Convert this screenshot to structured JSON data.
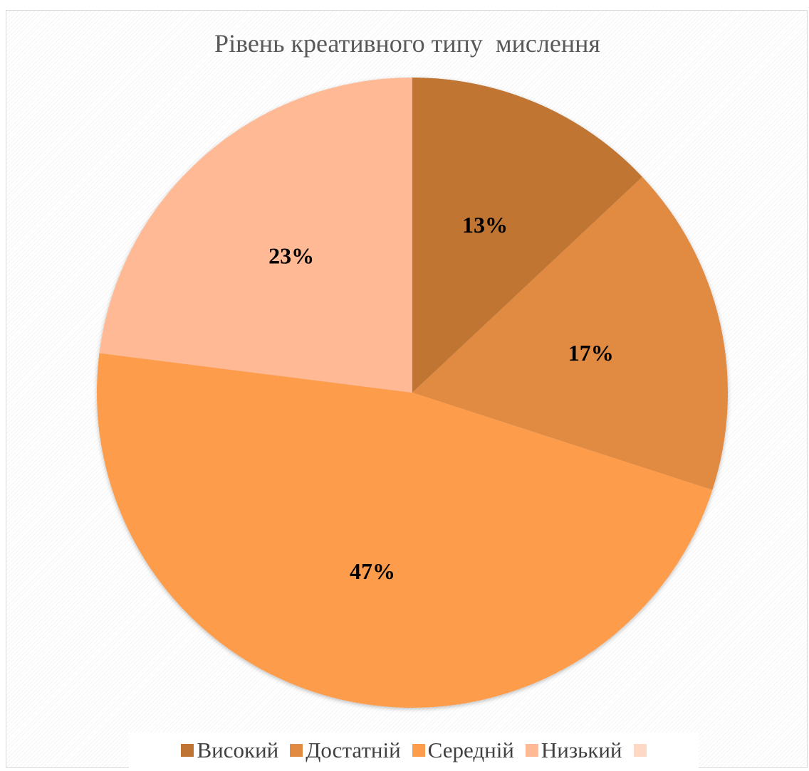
{
  "chart_data": {
    "type": "pie",
    "title": "Рівень креативного типу  мислення",
    "categories": [
      "Високий",
      "Достатній",
      "Середній",
      "Низький",
      ""
    ],
    "values": [
      13,
      17,
      47,
      23,
      0
    ],
    "data_labels": [
      "13%",
      "17%",
      "47%",
      "23%",
      ""
    ],
    "colors": [
      "#c07433",
      "#e08a42",
      "#fd9c4b",
      "#ffb995",
      "#fdd8c4"
    ],
    "legend_position": "bottom"
  }
}
